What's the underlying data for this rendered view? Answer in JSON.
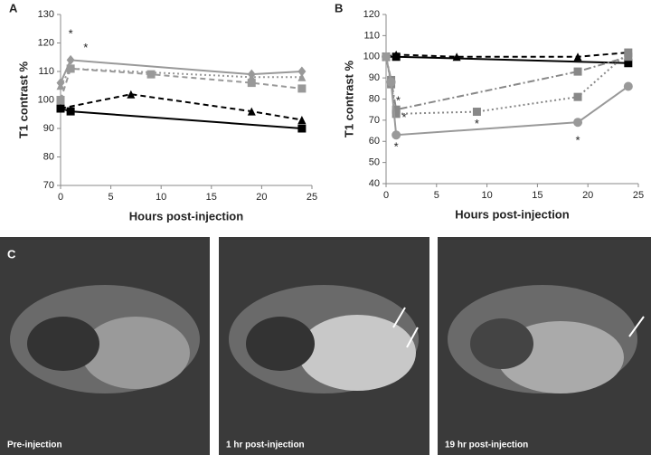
{
  "chart_data": [
    {
      "type": "line",
      "panel": "A",
      "ylabel": "T1 contrast %",
      "xlabel": "Hours post-injection",
      "xlim": [
        0,
        25
      ],
      "xticks": [
        0,
        5,
        10,
        15,
        20,
        25
      ],
      "ylim": [
        70,
        130
      ],
      "yticks": [
        70,
        80,
        90,
        100,
        110,
        120,
        130
      ],
      "series": [
        {
          "color": "#999999",
          "dash": "solid",
          "marker": "diamond",
          "x": [
            0,
            1,
            19,
            24
          ],
          "values": [
            106,
            114,
            109,
            110
          ]
        },
        {
          "color": "#999999",
          "dash": "dotted",
          "marker": "triangle",
          "x": [
            0,
            1,
            19,
            24
          ],
          "values": [
            105,
            111,
            108,
            108
          ]
        },
        {
          "color": "#999999",
          "dash": "dashed",
          "marker": "square",
          "x": [
            0,
            1,
            9,
            19,
            24
          ],
          "values": [
            100,
            111,
            109,
            106,
            104
          ]
        },
        {
          "color": "#000000",
          "dash": "dashed",
          "marker": "triangle",
          "x": [
            0,
            7,
            19,
            24
          ],
          "values": [
            97,
            102,
            96,
            93
          ]
        },
        {
          "color": "#000000",
          "dash": "solid",
          "marker": "square",
          "x": [
            0,
            1,
            24
          ],
          "values": [
            97,
            96,
            90
          ]
        }
      ],
      "annotations": [
        {
          "text": "*",
          "x": 1,
          "y": 123
        },
        {
          "text": "*",
          "x": 2.5,
          "y": 118
        }
      ]
    },
    {
      "type": "line",
      "panel": "B",
      "ylabel": "T1 contrast %",
      "xlabel": "Hours post-injection",
      "xlim": [
        0,
        25
      ],
      "xticks": [
        0,
        5,
        10,
        15,
        20,
        25
      ],
      "ylim": [
        40,
        120
      ],
      "yticks": [
        40,
        50,
        60,
        70,
        80,
        90,
        100,
        110,
        120
      ],
      "series": [
        {
          "color": "#000000",
          "dash": "solid",
          "marker": "square",
          "x": [
            0,
            1,
            24
          ],
          "values": [
            100,
            100,
            97
          ]
        },
        {
          "color": "#000000",
          "dash": "dashed",
          "marker": "triangle",
          "x": [
            0,
            1,
            7,
            19,
            24
          ],
          "values": [
            100,
            101,
            100,
            100,
            102
          ]
        },
        {
          "color": "#888888",
          "dash": "dashdot",
          "marker": "square",
          "x": [
            0,
            0.5,
            1,
            19,
            24
          ],
          "values": [
            100,
            89,
            75,
            93,
            100
          ]
        },
        {
          "color": "#888888",
          "dash": "dotted",
          "marker": "square",
          "x": [
            0,
            0.5,
            1,
            9,
            19,
            24
          ],
          "values": [
            100,
            87,
            73,
            74,
            81,
            102
          ]
        },
        {
          "color": "#999999",
          "dash": "solid",
          "marker": "circle",
          "x": [
            0,
            0.5,
            1,
            19,
            24
          ],
          "values": [
            100,
            88,
            63,
            69,
            86
          ]
        }
      ],
      "annotations": [
        {
          "text": "*",
          "x": 1.2,
          "y": 79
        },
        {
          "text": "*",
          "x": 1.8,
          "y": 71
        },
        {
          "text": "*",
          "x": 1,
          "y": 57
        },
        {
          "text": "*",
          "x": 9,
          "y": 68
        },
        {
          "text": "*",
          "x": 19,
          "y": 60
        }
      ]
    }
  ],
  "images": {
    "panel": "C",
    "captions": [
      "Pre-injection",
      "1 hr post-injection",
      "19 hr post-injection"
    ]
  }
}
